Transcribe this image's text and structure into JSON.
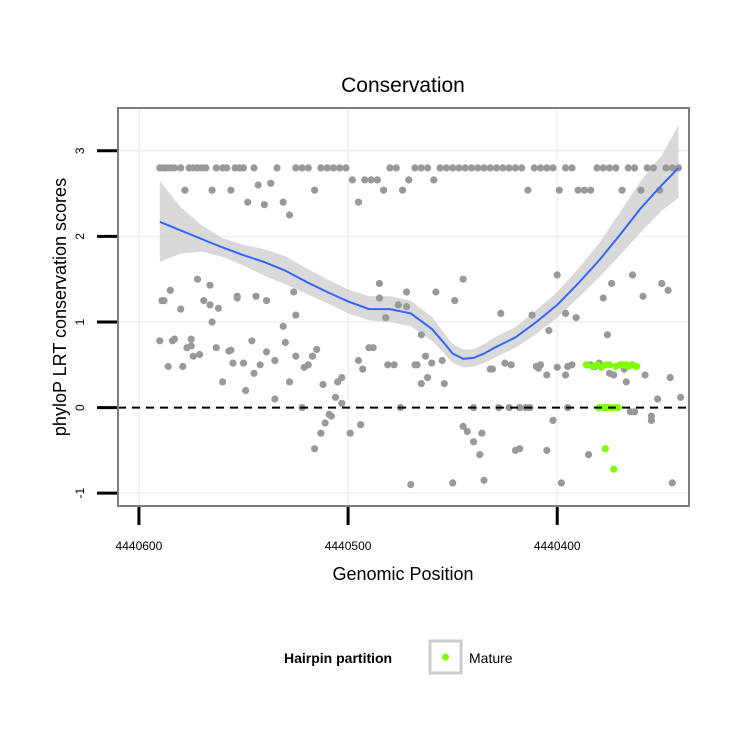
{
  "chart_data": {
    "type": "scatter",
    "title": "Conservation",
    "xlabel": "Genomic Position",
    "ylabel": "phyloP LRT conservation scores",
    "xlim": [
      4440610,
      4440337
    ],
    "ylim": [
      -1.15,
      3.5
    ],
    "x_reversed": true,
    "x_ticks": [
      4440600,
      4440500,
      4440400
    ],
    "x_tick_labels": [
      "4440600",
      "4440500",
      "4440400"
    ],
    "y_ticks": [
      -1,
      0,
      1,
      2,
      3
    ],
    "y_tick_labels": [
      "-1",
      "0",
      "1",
      "2",
      "3"
    ],
    "grid": true,
    "reference_line": {
      "y": 0,
      "style": "dashed"
    },
    "colors": {
      "other": "#999999",
      "mature": "#80ff00",
      "smooth": "#3366ff",
      "band": "#cccccc",
      "ref": "#000000",
      "grid": "#f0f0f0",
      "frame": "#7f7f7f"
    },
    "series": [
      {
        "role": "other",
        "x": [
          4440590,
          4440588,
          4440587,
          4440585,
          4440583,
          4440580,
          4440578,
          4440576,
          4440574,
          4440572,
          4440570,
          4440568,
          4440565,
          4440563,
          4440560,
          4440558,
          4440556,
          4440554,
          4440552,
          4440550,
          4440548,
          4440545,
          4440543,
          4440540,
          4440537,
          4440534,
          4440531,
          4440528,
          4440525,
          4440522,
          4440519,
          4440516,
          4440513,
          4440510,
          4440507,
          4440504,
          4440501,
          4440498,
          4440495,
          4440492,
          4440489,
          4440486,
          4440483,
          4440480,
          4440477,
          4440474,
          4440471,
          4440468,
          4440465,
          4440462,
          4440459,
          4440456,
          4440453,
          4440450,
          4440447,
          4440444,
          4440441,
          4440438,
          4440435,
          4440432,
          4440429,
          4440426,
          4440423,
          4440420,
          4440417,
          4440414,
          4440411,
          4440408,
          4440405,
          4440402,
          4440399,
          4440396,
          4440393,
          4440390,
          4440387,
          4440384,
          4440381,
          4440378,
          4440375,
          4440372,
          4440369,
          4440366,
          4440363,
          4440360,
          4440357,
          4440354,
          4440351,
          4440348,
          4440345,
          4440342,
          4440589,
          4440584,
          4440579,
          4440575,
          4440571,
          4440566,
          4440562,
          4440557,
          4440553,
          4440549,
          4440544,
          4440539,
          4440535,
          4440530,
          4440526,
          4440521,
          4440517,
          4440512,
          4440508,
          4440503,
          4440499,
          4440494,
          4440490,
          4440485,
          4440481,
          4440476,
          4440472,
          4440467,
          4440463,
          4440458,
          4440454,
          4440449,
          4440445,
          4440440,
          4440436,
          4440431,
          4440427,
          4440422,
          4440418,
          4440413,
          4440409,
          4440404,
          4440400,
          4440395,
          4440391,
          4440386,
          4440382,
          4440377,
          4440373,
          4440368,
          4440364,
          4440359,
          4440355,
          4440350,
          4440346,
          4440341,
          4440585,
          4440575,
          4440565,
          4440555,
          4440545,
          4440535,
          4440525,
          4440515,
          4440505,
          4440495,
          4440485,
          4440475,
          4440465,
          4440455,
          4440445,
          4440435,
          4440425,
          4440415,
          4440405,
          4440395,
          4440385,
          4440375,
          4440365,
          4440355,
          4440345
        ],
        "y": [
          2.8,
          2.8,
          2.8,
          2.8,
          2.8,
          2.8,
          2.54,
          2.8,
          2.8,
          2.8,
          2.8,
          2.8,
          2.54,
          2.8,
          2.8,
          2.8,
          2.54,
          2.8,
          2.8,
          2.8,
          2.4,
          2.8,
          2.6,
          2.37,
          2.62,
          2.8,
          2.4,
          2.25,
          2.8,
          2.8,
          2.8,
          2.54,
          2.8,
          2.8,
          2.8,
          2.8,
          2.8,
          2.66,
          2.4,
          2.66,
          2.66,
          2.66,
          2.54,
          2.8,
          2.8,
          2.54,
          2.66,
          2.8,
          2.8,
          2.8,
          2.66,
          2.8,
          2.8,
          2.8,
          2.8,
          2.8,
          2.8,
          2.8,
          2.8,
          2.8,
          2.8,
          2.8,
          2.8,
          2.8,
          2.8,
          2.54,
          2.8,
          2.8,
          2.8,
          2.8,
          2.54,
          2.8,
          2.8,
          2.54,
          2.54,
          2.54,
          2.8,
          2.8,
          2.8,
          2.8,
          2.54,
          2.8,
          2.8,
          2.54,
          2.8,
          2.8,
          2.54,
          2.8,
          2.8,
          2.8,
          1.25,
          0.78,
          0.48,
          0.8,
          0.62,
          1.43,
          1.16,
          0.66,
          1.28,
          0.2,
          1.3,
          1.25,
          0.55,
          0.76,
          1.35,
          0.47,
          0.6,
          0.27,
          -0.1,
          0.05,
          -0.3,
          -0.2,
          0.7,
          1.45,
          0.5,
          1.2,
          1.18,
          0.5,
          0.6,
          1.35,
          0.28,
          1.25,
          1.5,
          0.0,
          -0.3,
          0.45,
          1.1,
          0.5,
          -0.48,
          0.0,
          0.46,
          0.9,
          0.47,
          0.0,
          1.05,
          0.5,
          0.48,
          0.0,
          0.38,
          0.45,
          1.55,
          1.3,
          -0.1,
          1.45,
          0.35,
          0.12,
          1.37,
          0.72,
          1.0,
          0.52,
          0.4,
          0.1,
          1.08,
          0.68,
          0.3,
          0.55,
          1.28,
          0.0,
          0.85,
          0.55,
          -0.22,
          -0.85,
          0.52,
          0.0,
          0.38,
          0.48,
          -0.55,
          0.4,
          -0.05,
          -0.15,
          -0.88
        ],
        "raw": [
          [
            4440470,
            -0.9
          ],
          [
            4440450,
            -0.88
          ],
          [
            4440437,
            -0.55
          ],
          [
            4440440,
            -0.4
          ],
          [
            4440443,
            -0.28
          ],
          [
            4440398,
            -0.88
          ],
          [
            4440405,
            -0.5
          ],
          [
            4440402,
            -0.15
          ],
          [
            4440420,
            -0.5
          ],
          [
            4440418,
            0.0
          ],
          [
            4440432,
            0.45
          ],
          [
            4440428,
            0.0
          ],
          [
            4440423,
            0.0
          ],
          [
            4440410,
            0.48
          ],
          [
            4440408,
            0.5
          ],
          [
            4440396,
            0.38
          ],
          [
            4440393,
            0.5
          ],
          [
            4440412,
            1.08
          ],
          [
            4440460,
            0.52
          ],
          [
            4440462,
            0.35
          ],
          [
            4440465,
            0.28
          ],
          [
            4440468,
            0.5
          ],
          [
            4440472,
            1.35
          ],
          [
            4440478,
            0.5
          ],
          [
            4440482,
            1.05
          ],
          [
            4440488,
            0.7
          ],
          [
            4440493,
            0.45
          ],
          [
            4440503,
            0.35
          ],
          [
            4440506,
            0.12
          ],
          [
            4440509,
            -0.08
          ],
          [
            4440511,
            -0.18
          ],
          [
            4440513,
            -0.3
          ],
          [
            4440516,
            -0.48
          ],
          [
            4440519,
            0.5
          ],
          [
            4440522,
            0.0
          ],
          [
            4440525,
            0.6
          ],
          [
            4440528,
            0.3
          ],
          [
            4440531,
            0.95
          ],
          [
            4440535,
            0.55
          ],
          [
            4440539,
            0.65
          ],
          [
            4440542,
            0.5
          ],
          [
            4440546,
            0.78
          ],
          [
            4440550,
            0.52
          ],
          [
            4440553,
            1.3
          ],
          [
            4440556,
            0.67
          ],
          [
            4440560,
            0.3
          ],
          [
            4440563,
            0.7
          ],
          [
            4440566,
            1.2
          ],
          [
            4440569,
            1.25
          ],
          [
            4440572,
            1.5
          ],
          [
            4440574,
            0.6
          ],
          [
            4440577,
            0.7
          ],
          [
            4440580,
            1.15
          ],
          [
            4440583,
            0.8
          ],
          [
            4440586,
            0.48
          ],
          [
            4440588,
            1.25
          ],
          [
            4440590,
            0.78
          ],
          [
            4440400,
            1.55
          ],
          [
            4440396,
            1.1
          ],
          [
            4440378,
            1.28
          ],
          [
            4440374,
            1.45
          ],
          [
            4440370,
            0.5
          ],
          [
            4440367,
            0.3
          ],
          [
            4440363,
            -0.05
          ],
          [
            4440358,
            0.38
          ],
          [
            4440352,
            0.1
          ],
          [
            4440347,
            1.37
          ],
          [
            4440384,
            0.5
          ],
          [
            4440380,
            0.52
          ],
          [
            4440376,
            0.85
          ]
        ]
      },
      {
        "role": "mature",
        "name": "Mature",
        "x": [
          4440386,
          4440383,
          4440381,
          4440379,
          4440377,
          4440375,
          4440372,
          4440370,
          4440368,
          4440366,
          4440364,
          4440362,
          4440380,
          4440378,
          4440376,
          4440374,
          4440373,
          4440371,
          4440369,
          4440367,
          4440377,
          4440373
        ],
        "y": [
          0.5,
          0.48,
          0.5,
          0.47,
          0.5,
          0.5,
          0.48,
          0.5,
          0.5,
          0.48,
          0.5,
          0.48,
          0.0,
          0.0,
          0.0,
          0.0,
          0.0,
          0.0,
          0.5,
          0.5,
          -0.48,
          -0.72
        ]
      }
    ],
    "smooth": {
      "x": [
        4440590,
        4440580,
        4440570,
        4440560,
        4440550,
        4440540,
        4440530,
        4440520,
        4440510,
        4440500,
        4440490,
        4440480,
        4440470,
        4440460,
        4440455,
        4440450,
        4440445,
        4440440,
        4440435,
        4440430,
        4440420,
        4440410,
        4440400,
        4440390,
        4440380,
        4440370,
        4440360,
        4440350,
        4440342
      ],
      "y": [
        2.17,
        2.07,
        1.97,
        1.87,
        1.78,
        1.7,
        1.6,
        1.47,
        1.35,
        1.24,
        1.15,
        1.15,
        1.1,
        0.92,
        0.78,
        0.63,
        0.57,
        0.58,
        0.63,
        0.7,
        0.82,
        1.0,
        1.2,
        1.45,
        1.72,
        2.02,
        2.33,
        2.6,
        2.8
      ],
      "lower": [
        1.7,
        1.8,
        1.82,
        1.76,
        1.66,
        1.54,
        1.44,
        1.33,
        1.22,
        1.1,
        1.02,
        1.0,
        0.95,
        0.78,
        0.66,
        0.52,
        0.47,
        0.48,
        0.52,
        0.58,
        0.7,
        0.86,
        1.05,
        1.28,
        1.52,
        1.78,
        2.05,
        2.3,
        2.45
      ],
      "upper": [
        2.65,
        2.34,
        2.13,
        1.98,
        1.9,
        1.85,
        1.77,
        1.63,
        1.5,
        1.38,
        1.3,
        1.3,
        1.25,
        1.06,
        0.9,
        0.74,
        0.68,
        0.68,
        0.74,
        0.82,
        0.94,
        1.14,
        1.35,
        1.62,
        1.92,
        2.28,
        2.65,
        2.95,
        3.3
      ]
    },
    "legend": {
      "title": "Hairpin partition",
      "entries": [
        {
          "label": "Mature",
          "color": "#80ff00"
        }
      ],
      "placement": "bottom"
    }
  }
}
